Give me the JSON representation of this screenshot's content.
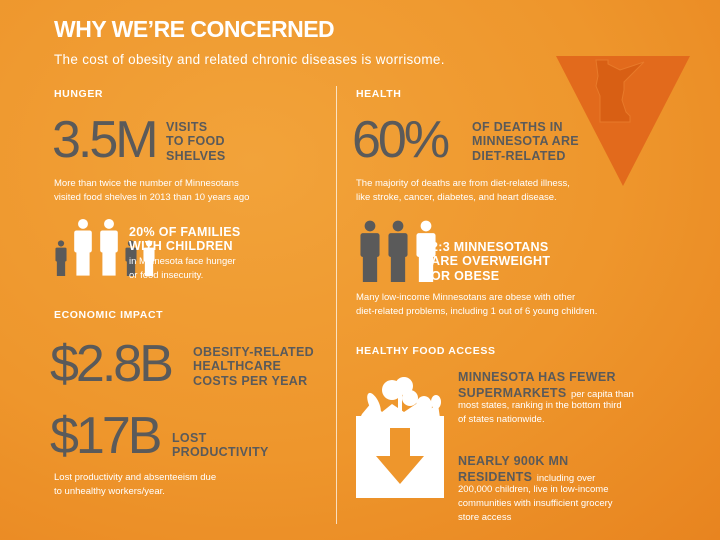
{
  "header": {
    "title": "WHY WE’RE CONCERNED",
    "subtitle": "The cost of obesity and related chronic diseases is worrisome."
  },
  "hunger": {
    "section_label": "HUNGER",
    "stat": "3.5M",
    "stat_caption": [
      "VISITS",
      "TO FOOD",
      "SHELVES"
    ],
    "stat_note": [
      "More than twice the number of Minnesotans",
      "visited food shelves in 2013 than 10 years ago"
    ],
    "families_headline": [
      "20% OF FAMILIES",
      "WITH CHILDREN"
    ],
    "families_note": [
      "in Minnesota face hunger",
      "or food insecurity."
    ]
  },
  "health": {
    "section_label": "HEALTH",
    "stat": "60%",
    "stat_caption": [
      "OF DEATHS IN",
      "MINNESOTA ARE",
      "DIET-RELATED"
    ],
    "stat_note": [
      "The majority of deaths are from diet-related illness,",
      "like stroke, cancer, diabetes, and heart disease."
    ],
    "obese_headline": [
      "2:3 MINNESOTANS",
      "ARE OVERWEIGHT",
      "OR OBESE"
    ],
    "obese_note": [
      "Many low-income Minnesotans are obese with other",
      "diet-related problems, including 1 out of 6 young children."
    ]
  },
  "economic": {
    "section_label": "ECONOMIC IMPACT",
    "stat1": "$2.8B",
    "stat1_caption": [
      "OBESITY-RELATED",
      "HEALTHCARE",
      "COSTS PER YEAR"
    ],
    "stat2": "$17B",
    "stat2_caption": [
      "LOST",
      "PRODUCTIVITY"
    ],
    "note": [
      "Lost productivity and absenteeism due",
      "to unhealthy workers/year."
    ]
  },
  "food_access": {
    "section_label": "HEALTHY FOOD ACCESS",
    "fact1_headline": [
      "MINNESOTA HAS FEWER",
      "SUPERMARKETS"
    ],
    "fact1_tail": "per capita than",
    "fact1_note": [
      "most states, ranking in the bottom third",
      "of states nationwide."
    ],
    "fact2_headline": [
      "NEARLY 900K MN",
      "RESIDENTS"
    ],
    "fact2_tail": "including over",
    "fact2_note": [
      "200,000 children, live in low-income",
      "communities with insufficient grocery",
      "store access"
    ]
  },
  "colors": {
    "background": "#ee962c",
    "arrow": "#e26a1c",
    "stat_gray": "#5a5a5a",
    "text_white": "#ffffff"
  },
  "people_families": [
    "gray",
    "white",
    "white",
    "gray",
    "white"
  ],
  "people_obese": [
    "gray",
    "gray",
    "white"
  ]
}
